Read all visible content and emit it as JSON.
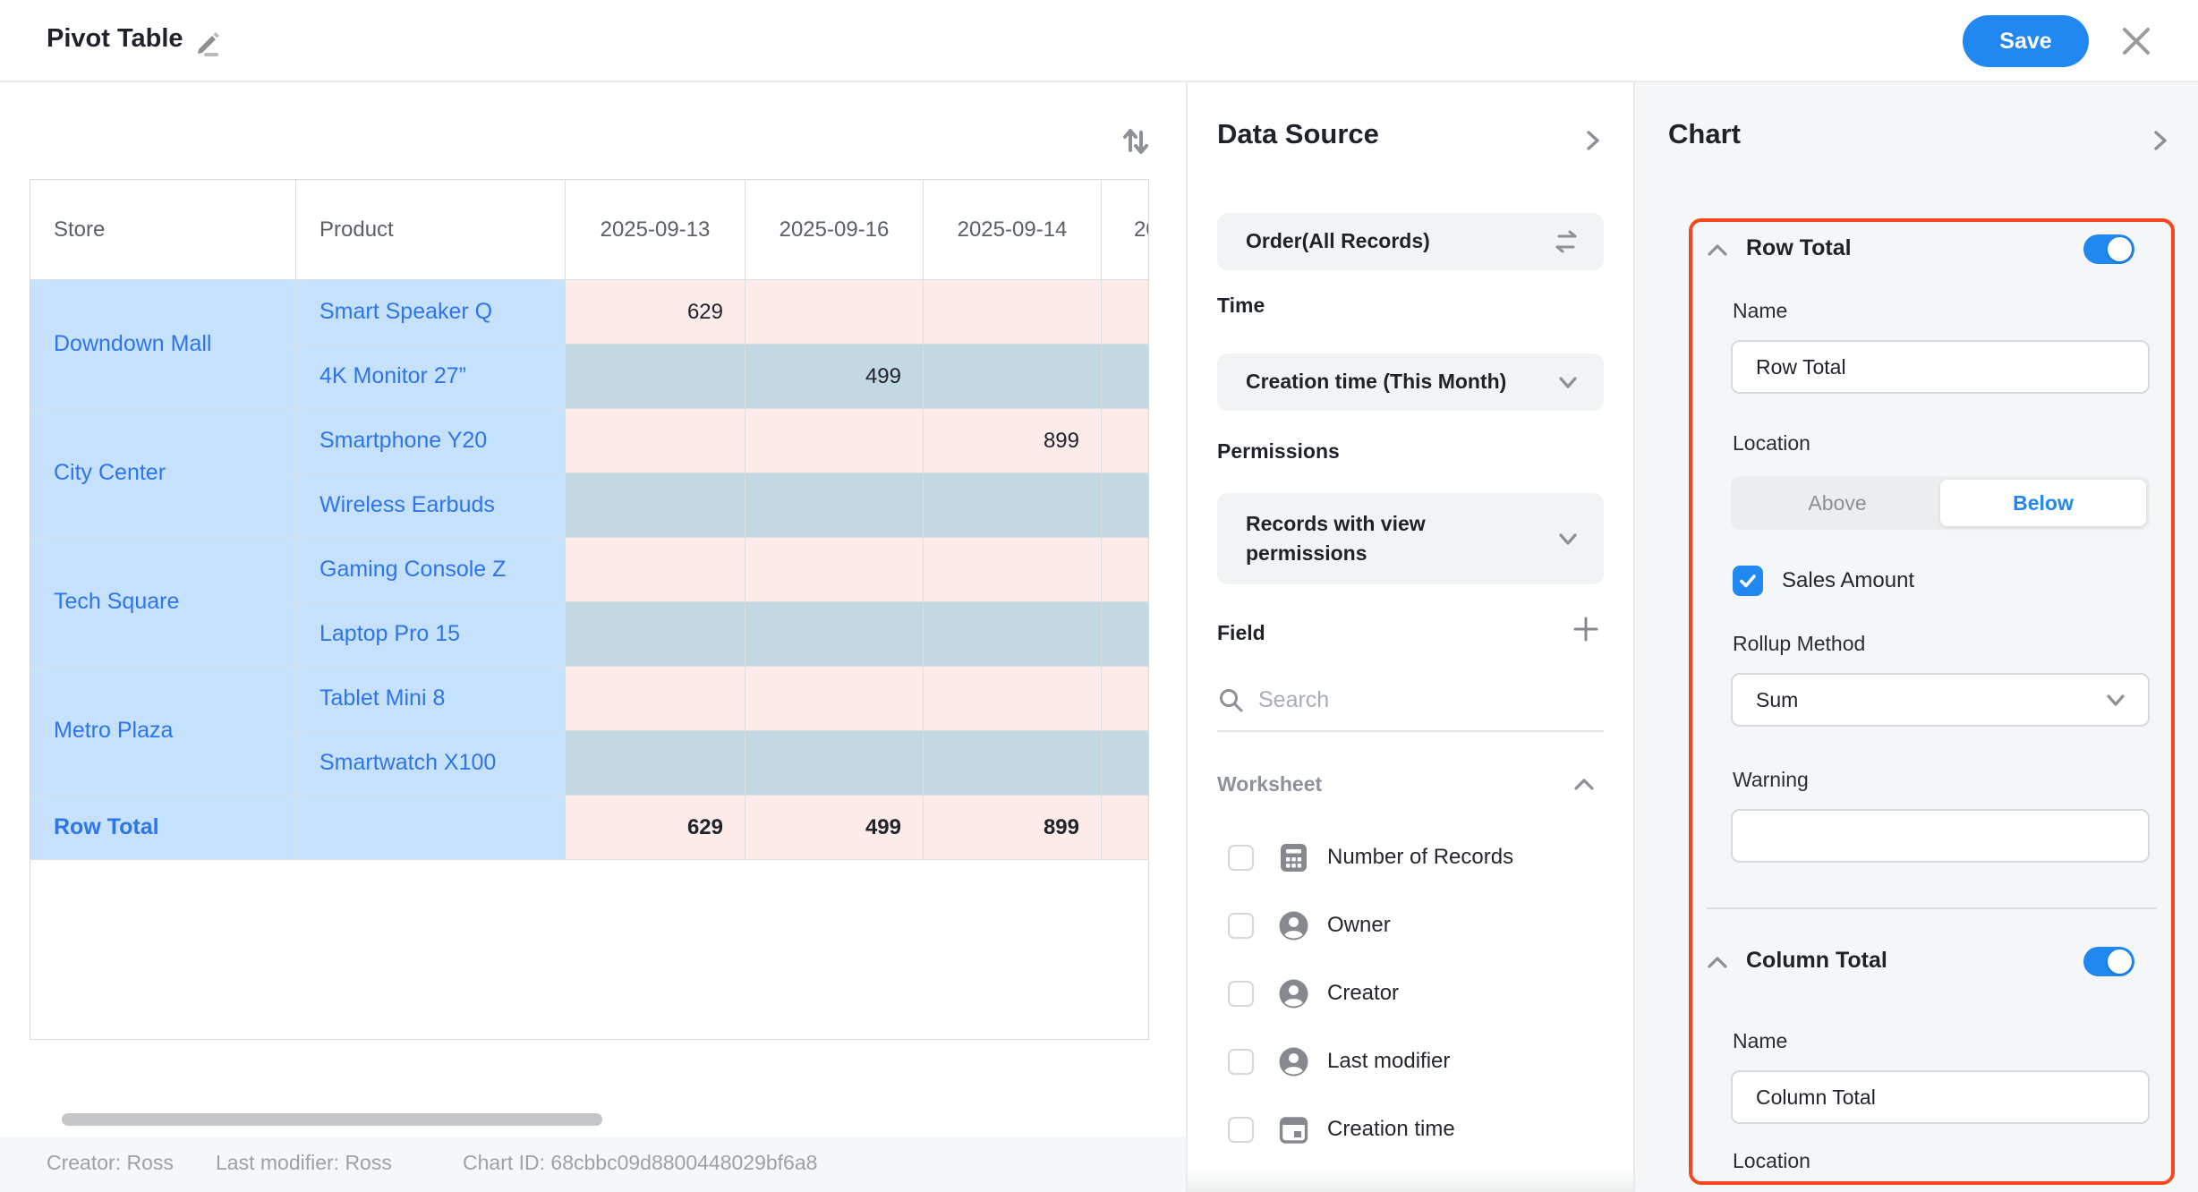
{
  "header": {
    "title": "Pivot Table",
    "save_label": "Save"
  },
  "table": {
    "columns": [
      "Store",
      "Product",
      "2025-09-13",
      "2025-09-16",
      "2025-09-14",
      "20"
    ],
    "groups": [
      {
        "store": "Downdown Mall",
        "products": [
          {
            "name": "Smart Speaker Q",
            "values": [
              "629",
              "",
              "",
              ""
            ]
          },
          {
            "name": "4K Monitor 27”",
            "values": [
              "",
              "499",
              "",
              ""
            ]
          }
        ]
      },
      {
        "store": "City Center",
        "products": [
          {
            "name": "Smartphone Y20",
            "values": [
              "",
              "",
              "899",
              ""
            ]
          },
          {
            "name": "Wireless Earbuds",
            "values": [
              "",
              "",
              "",
              ""
            ]
          }
        ]
      },
      {
        "store": "Tech Square",
        "products": [
          {
            "name": "Gaming Console Z",
            "values": [
              "",
              "",
              "",
              ""
            ]
          },
          {
            "name": "Laptop Pro 15",
            "values": [
              "",
              "",
              "",
              ""
            ]
          }
        ]
      },
      {
        "store": "Metro Plaza",
        "products": [
          {
            "name": "Tablet Mini 8",
            "values": [
              "",
              "",
              "",
              ""
            ]
          },
          {
            "name": "Smartwatch X100",
            "values": [
              "",
              "",
              "",
              ""
            ]
          }
        ]
      }
    ],
    "row_total": {
      "label": "Row Total",
      "values": [
        "629",
        "499",
        "899",
        ""
      ]
    }
  },
  "footer": {
    "creator": "Creator: Ross",
    "last_modifier": "Last modifier: Ross",
    "chart_id": "Chart ID: 68cbbc09d8800448029bf6a8"
  },
  "data_source_panel": {
    "title": "Data Source",
    "source_value": "Order(All Records)",
    "time_label": "Time",
    "time_value": "Creation time (This Month)",
    "permissions_label": "Permissions",
    "permissions_value": "Records with view permissions",
    "field_label": "Field",
    "search_placeholder": "Search",
    "worksheet_label": "Worksheet",
    "fields": [
      {
        "icon": "calculator-icon",
        "label": "Number of Records",
        "checked": false
      },
      {
        "icon": "person-icon",
        "label": "Owner",
        "checked": false
      },
      {
        "icon": "person-icon",
        "label": "Creator",
        "checked": false
      },
      {
        "icon": "person-icon",
        "label": "Last modifier",
        "checked": false
      },
      {
        "icon": "calendar-icon",
        "label": "Creation time",
        "checked": false
      }
    ]
  },
  "chart_panel": {
    "title": "Chart",
    "row_total": {
      "title": "Row Total",
      "enabled": true,
      "name_label": "Name",
      "name_value": "Row Total",
      "location_label": "Location",
      "location_options": [
        "Above",
        "Below"
      ],
      "location_selected": "Below",
      "field_checkbox_label": "Sales Amount",
      "field_checkbox_checked": true,
      "rollup_label": "Rollup Method",
      "rollup_value": "Sum",
      "warning_label": "Warning",
      "warning_value": ""
    },
    "column_total": {
      "title": "Column Total",
      "enabled": true,
      "name_label": "Name",
      "name_value": "Column Total",
      "location_label": "Location"
    }
  },
  "colors": {
    "accent_blue": "#2188f2",
    "annotation_red": "#f4481c",
    "row_pink": "#fcebe8",
    "row_bluegray": "#c2d8e2",
    "key_cell_blue": "#c5e1fb",
    "link_blue": "#2e74ea"
  }
}
